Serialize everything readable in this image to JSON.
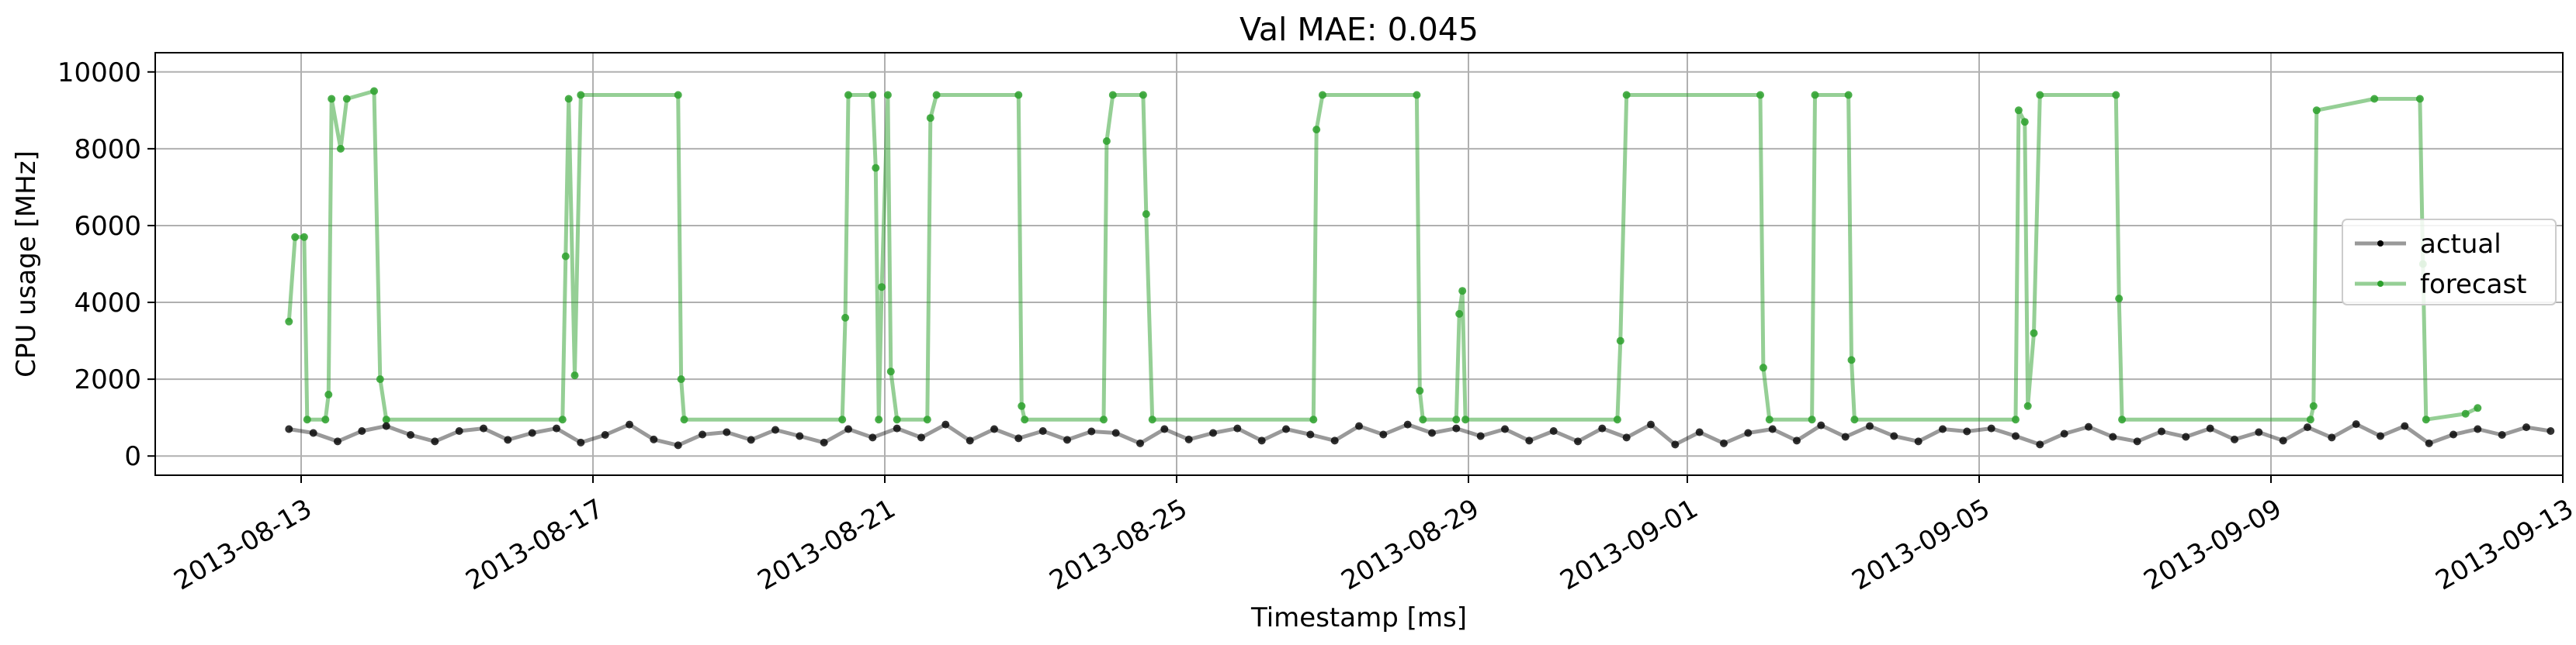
{
  "chart_data": {
    "type": "line",
    "title": "Val MAE: 0.045",
    "xlabel": "Timestamp [ms]",
    "ylabel": "CPU usage [MHz]",
    "ylim": [
      -500,
      10500
    ],
    "xlim": [
      "2013-08-11",
      "2013-09-13"
    ],
    "yticks": [
      0,
      2000,
      4000,
      6000,
      8000,
      10000
    ],
    "xticks": [
      "2013-08-13",
      "2013-08-17",
      "2013-08-21",
      "2013-08-25",
      "2013-08-29",
      "2013-09-01",
      "2013-09-05",
      "2013-09-09",
      "2013-09-13"
    ],
    "grid": true,
    "legend_position": "center-right",
    "series": [
      {
        "name": "actual",
        "color": "#000000",
        "points": [
          [
            "2013-08-12T20:00",
            700
          ],
          [
            "2013-08-13T04:00",
            600
          ],
          [
            "2013-08-13T12:00",
            380
          ],
          [
            "2013-08-13T20:00",
            650
          ],
          [
            "2013-08-14T04:00",
            780
          ],
          [
            "2013-08-14T12:00",
            550
          ],
          [
            "2013-08-14T20:00",
            380
          ],
          [
            "2013-08-15T04:00",
            650
          ],
          [
            "2013-08-15T12:00",
            720
          ],
          [
            "2013-08-15T20:00",
            420
          ],
          [
            "2013-08-16T04:00",
            600
          ],
          [
            "2013-08-16T12:00",
            720
          ],
          [
            "2013-08-16T20:00",
            350
          ],
          [
            "2013-08-17T04:00",
            550
          ],
          [
            "2013-08-17T12:00",
            820
          ],
          [
            "2013-08-17T20:00",
            430
          ],
          [
            "2013-08-18T04:00",
            280
          ],
          [
            "2013-08-18T12:00",
            560
          ],
          [
            "2013-08-18T20:00",
            620
          ],
          [
            "2013-08-19T04:00",
            420
          ],
          [
            "2013-08-19T12:00",
            680
          ],
          [
            "2013-08-19T20:00",
            520
          ],
          [
            "2013-08-20T04:00",
            350
          ],
          [
            "2013-08-20T12:00",
            700
          ],
          [
            "2013-08-20T20:00",
            480
          ],
          [
            "2013-08-21T04:00",
            720
          ],
          [
            "2013-08-21T12:00",
            480
          ],
          [
            "2013-08-21T20:00",
            820
          ],
          [
            "2013-08-22T04:00",
            400
          ],
          [
            "2013-08-22T12:00",
            700
          ],
          [
            "2013-08-22T20:00",
            460
          ],
          [
            "2013-08-23T04:00",
            650
          ],
          [
            "2013-08-23T12:00",
            420
          ],
          [
            "2013-08-23T20:00",
            640
          ],
          [
            "2013-08-24T04:00",
            600
          ],
          [
            "2013-08-24T12:00",
            330
          ],
          [
            "2013-08-24T20:00",
            700
          ],
          [
            "2013-08-25T04:00",
            430
          ],
          [
            "2013-08-25T12:00",
            600
          ],
          [
            "2013-08-25T20:00",
            720
          ],
          [
            "2013-08-26T04:00",
            400
          ],
          [
            "2013-08-26T12:00",
            700
          ],
          [
            "2013-08-26T20:00",
            560
          ],
          [
            "2013-08-27T04:00",
            400
          ],
          [
            "2013-08-27T12:00",
            780
          ],
          [
            "2013-08-27T20:00",
            560
          ],
          [
            "2013-08-28T04:00",
            820
          ],
          [
            "2013-08-28T12:00",
            600
          ],
          [
            "2013-08-28T20:00",
            720
          ],
          [
            "2013-08-29T04:00",
            520
          ],
          [
            "2013-08-29T12:00",
            700
          ],
          [
            "2013-08-29T20:00",
            400
          ],
          [
            "2013-08-30T04:00",
            650
          ],
          [
            "2013-08-30T12:00",
            380
          ],
          [
            "2013-08-30T20:00",
            720
          ],
          [
            "2013-08-31T04:00",
            480
          ],
          [
            "2013-08-31T12:00",
            820
          ],
          [
            "2013-08-31T20:00",
            300
          ],
          [
            "2013-09-01T04:00",
            620
          ],
          [
            "2013-09-01T12:00",
            330
          ],
          [
            "2013-09-01T20:00",
            600
          ],
          [
            "2013-09-02T04:00",
            700
          ],
          [
            "2013-09-02T12:00",
            400
          ],
          [
            "2013-09-02T20:00",
            800
          ],
          [
            "2013-09-03T04:00",
            500
          ],
          [
            "2013-09-03T12:00",
            780
          ],
          [
            "2013-09-03T20:00",
            520
          ],
          [
            "2013-09-04T04:00",
            380
          ],
          [
            "2013-09-04T12:00",
            700
          ],
          [
            "2013-09-04T20:00",
            640
          ],
          [
            "2013-09-05T04:00",
            720
          ],
          [
            "2013-09-05T12:00",
            520
          ],
          [
            "2013-09-05T20:00",
            300
          ],
          [
            "2013-09-06T04:00",
            580
          ],
          [
            "2013-09-06T12:00",
            760
          ],
          [
            "2013-09-06T20:00",
            500
          ],
          [
            "2013-09-07T04:00",
            380
          ],
          [
            "2013-09-07T12:00",
            640
          ],
          [
            "2013-09-07T20:00",
            500
          ],
          [
            "2013-09-08T04:00",
            720
          ],
          [
            "2013-09-08T12:00",
            430
          ],
          [
            "2013-09-08T20:00",
            620
          ],
          [
            "2013-09-09T04:00",
            400
          ],
          [
            "2013-09-09T12:00",
            750
          ],
          [
            "2013-09-09T20:00",
            480
          ],
          [
            "2013-09-10T04:00",
            830
          ],
          [
            "2013-09-10T12:00",
            520
          ],
          [
            "2013-09-10T20:00",
            780
          ],
          [
            "2013-09-11T04:00",
            330
          ],
          [
            "2013-09-11T12:00",
            560
          ],
          [
            "2013-09-11T20:00",
            700
          ],
          [
            "2013-09-12T04:00",
            550
          ],
          [
            "2013-09-12T12:00",
            750
          ],
          [
            "2013-09-12T20:00",
            650
          ]
        ]
      },
      {
        "name": "forecast",
        "color": "#2ca02c",
        "points": [
          [
            "2013-08-12T20:00",
            3500
          ],
          [
            "2013-08-12T22:00",
            5700
          ],
          [
            "2013-08-13T01:00",
            5700
          ],
          [
            "2013-08-13T02:00",
            950
          ],
          [
            "2013-08-13T08:00",
            950
          ],
          [
            "2013-08-13T09:00",
            1600
          ],
          [
            "2013-08-13T10:00",
            9300
          ],
          [
            "2013-08-13T13:00",
            8000
          ],
          [
            "2013-08-13T15:00",
            9300
          ],
          [
            "2013-08-14T00:00",
            9500
          ],
          [
            "2013-08-14T02:00",
            2000
          ],
          [
            "2013-08-14T04:00",
            950
          ],
          [
            "2013-08-16T14:00",
            950
          ],
          [
            "2013-08-16T15:00",
            5200
          ],
          [
            "2013-08-16T16:00",
            9300
          ],
          [
            "2013-08-16T18:00",
            2100
          ],
          [
            "2013-08-16T20:00",
            9400
          ],
          [
            "2013-08-18T04:00",
            9400
          ],
          [
            "2013-08-18T05:00",
            2000
          ],
          [
            "2013-08-18T06:00",
            950
          ],
          [
            "2013-08-20T10:00",
            950
          ],
          [
            "2013-08-20T11:00",
            3600
          ],
          [
            "2013-08-20T12:00",
            9400
          ],
          [
            "2013-08-20T20:00",
            9400
          ],
          [
            "2013-08-20T21:00",
            7500
          ],
          [
            "2013-08-20T22:00",
            950
          ],
          [
            "2013-08-20T23:00",
            4400
          ],
          [
            "2013-08-21T01:00",
            9400
          ],
          [
            "2013-08-21T02:00",
            2200
          ],
          [
            "2013-08-21T04:00",
            950
          ],
          [
            "2013-08-21T14:00",
            950
          ],
          [
            "2013-08-21T15:00",
            8800
          ],
          [
            "2013-08-21T17:00",
            9400
          ],
          [
            "2013-08-22T20:00",
            9400
          ],
          [
            "2013-08-22T21:00",
            1300
          ],
          [
            "2013-08-22T22:00",
            950
          ],
          [
            "2013-08-24T00:00",
            950
          ],
          [
            "2013-08-24T01:00",
            8200
          ],
          [
            "2013-08-24T03:00",
            9400
          ],
          [
            "2013-08-24T13:00",
            9400
          ],
          [
            "2013-08-24T14:00",
            6300
          ],
          [
            "2013-08-24T16:00",
            950
          ],
          [
            "2013-08-26T21:00",
            950
          ],
          [
            "2013-08-26T22:00",
            8500
          ],
          [
            "2013-08-27T00:00",
            9400
          ],
          [
            "2013-08-28T07:00",
            9400
          ],
          [
            "2013-08-28T08:00",
            1700
          ],
          [
            "2013-08-28T09:00",
            950
          ],
          [
            "2013-08-28T20:00",
            950
          ],
          [
            "2013-08-28T21:00",
            3700
          ],
          [
            "2013-08-28T22:00",
            4300
          ],
          [
            "2013-08-28T23:00",
            950
          ],
          [
            "2013-08-31T01:00",
            950
          ],
          [
            "2013-08-31T02:00",
            3000
          ],
          [
            "2013-08-31T04:00",
            9400
          ],
          [
            "2013-09-02T00:00",
            9400
          ],
          [
            "2013-09-02T01:00",
            2300
          ],
          [
            "2013-09-02T03:00",
            950
          ],
          [
            "2013-09-02T17:00",
            950
          ],
          [
            "2013-09-02T18:00",
            9400
          ],
          [
            "2013-09-03T05:00",
            9400
          ],
          [
            "2013-09-03T06:00",
            2500
          ],
          [
            "2013-09-03T07:00",
            950
          ],
          [
            "2013-09-05T12:00",
            950
          ],
          [
            "2013-09-05T13:00",
            9000
          ],
          [
            "2013-09-05T15:00",
            8700
          ],
          [
            "2013-09-05T16:00",
            1300
          ],
          [
            "2013-09-05T18:00",
            3200
          ],
          [
            "2013-09-05T20:00",
            9400
          ],
          [
            "2013-09-06T21:00",
            9400
          ],
          [
            "2013-09-06T22:00",
            4100
          ],
          [
            "2013-09-06T23:00",
            950
          ],
          [
            "2013-09-09T13:00",
            950
          ],
          [
            "2013-09-09T14:00",
            1300
          ],
          [
            "2013-09-09T15:00",
            9000
          ],
          [
            "2013-09-10T10:00",
            9300
          ],
          [
            "2013-09-11T01:00",
            9300
          ],
          [
            "2013-09-11T02:00",
            5000
          ],
          [
            "2013-09-11T03:00",
            950
          ],
          [
            "2013-09-11T16:00",
            1100
          ],
          [
            "2013-09-11T20:00",
            1250
          ]
        ]
      }
    ]
  }
}
